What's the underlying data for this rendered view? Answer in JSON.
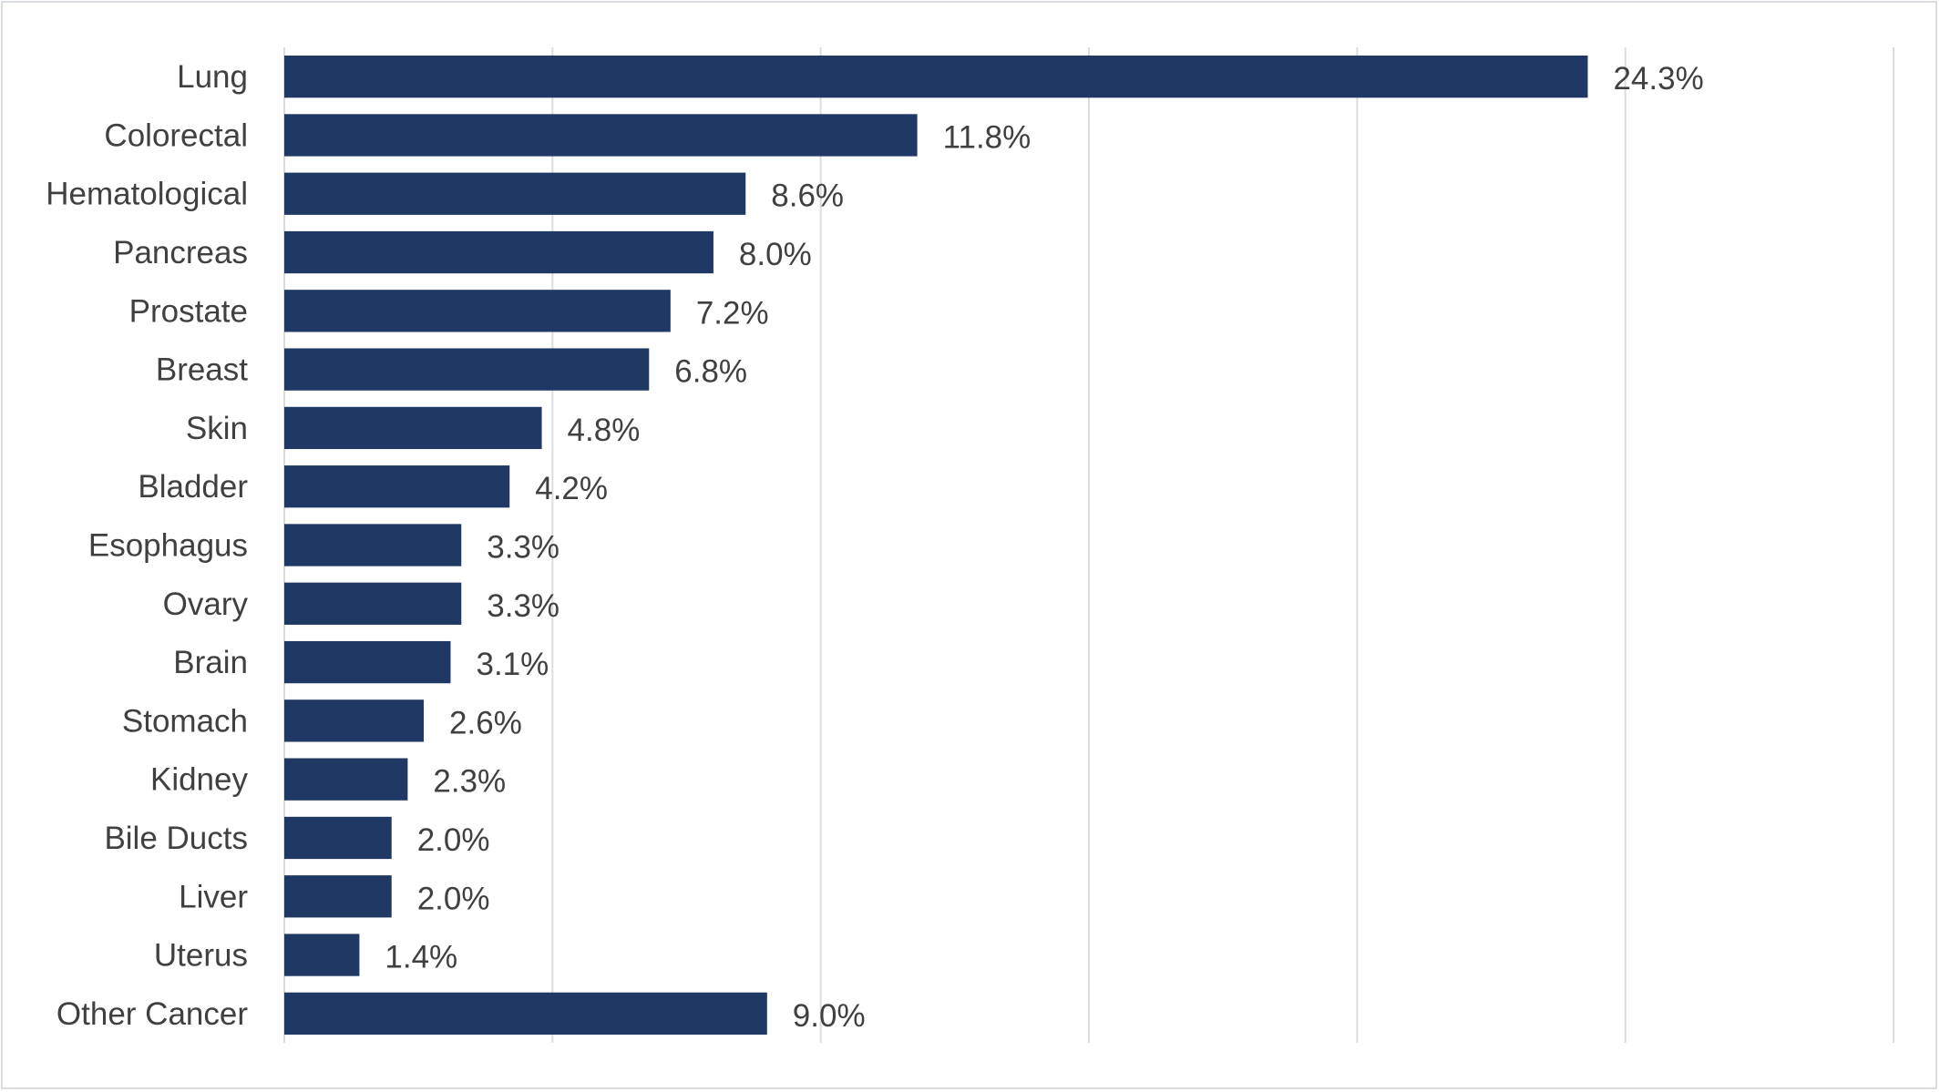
{
  "chart_data": {
    "type": "bar",
    "orientation": "horizontal",
    "title": "",
    "xlabel": "",
    "ylabel": "",
    "categories": [
      "Lung",
      "Colorectal",
      "Hematological",
      "Pancreas",
      "Prostate",
      "Breast",
      "Skin",
      "Bladder",
      "Esophagus",
      "Ovary",
      "Brain",
      "Stomach",
      "Kidney",
      "Bile Ducts",
      "Liver",
      "Uterus",
      "Other Cancer"
    ],
    "values": [
      24.3,
      11.8,
      8.6,
      8.0,
      7.2,
      6.8,
      4.8,
      4.2,
      3.3,
      3.3,
      3.1,
      2.6,
      2.3,
      2.0,
      2.0,
      1.4,
      9.0
    ],
    "data_labels": [
      "24.3%",
      "11.8%",
      "8.6%",
      "8.0%",
      "7.2%",
      "6.8%",
      "4.8%",
      "4.2%",
      "3.3%",
      "3.3%",
      "3.1%",
      "2.6%",
      "2.3%",
      "2.0%",
      "2.0%",
      "1.4%",
      "9.0%"
    ],
    "xlim": [
      0,
      30
    ],
    "x_gridline_step": 5,
    "x_tick_labels_shown": false,
    "grid": true,
    "legend": "none",
    "bar_color": "#203864",
    "grid_color": "#d9dde3"
  }
}
